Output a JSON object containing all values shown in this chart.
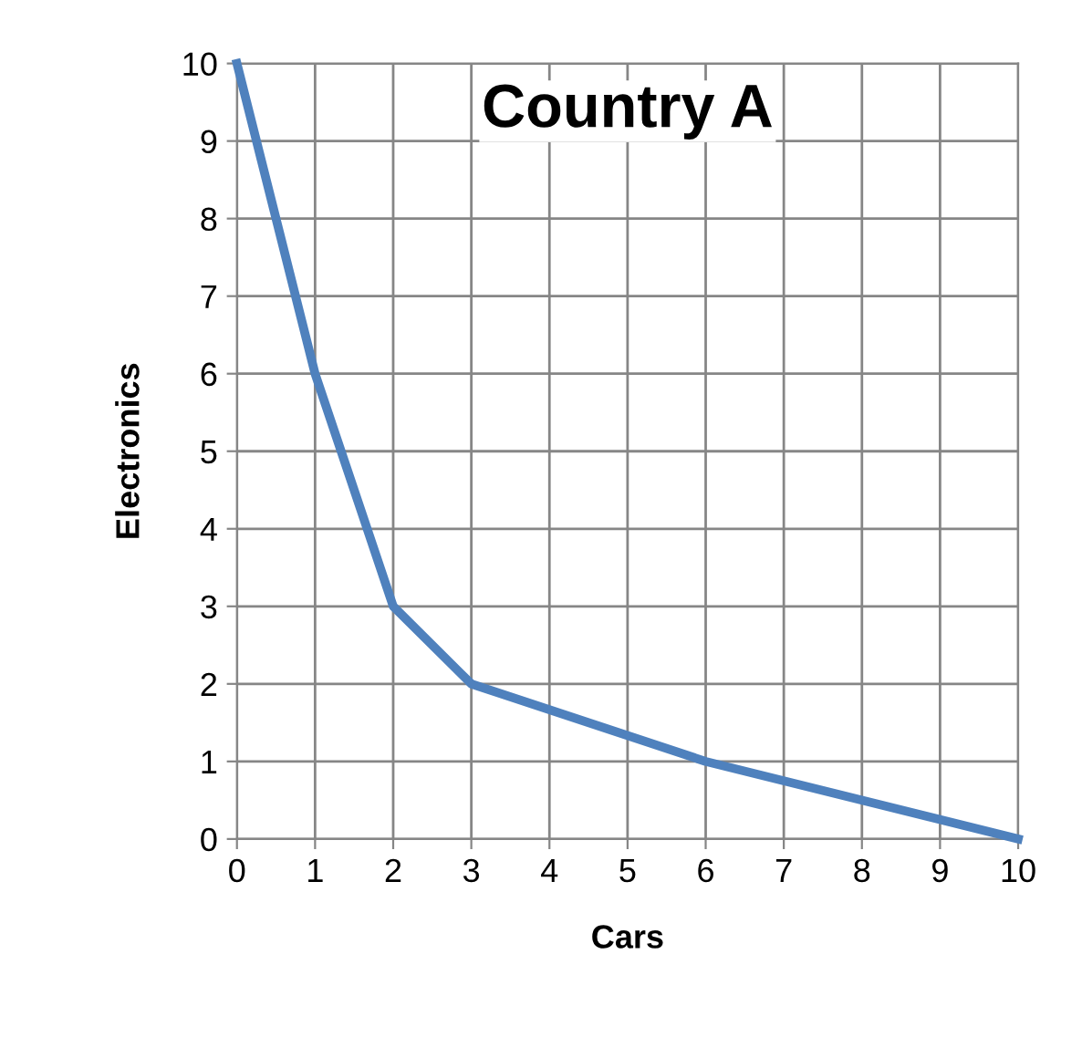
{
  "chart_data": {
    "type": "line",
    "title": "Country A",
    "xlabel": "Cars",
    "ylabel": "Electronics",
    "x": [
      0,
      1,
      2,
      3,
      6,
      10
    ],
    "series": [
      {
        "color": "#4f81bd",
        "values": [
          10,
          6,
          3,
          2,
          1,
          0
        ]
      }
    ],
    "xlim": [
      0,
      10
    ],
    "xticks": [
      0,
      1,
      2,
      3,
      4,
      5,
      6,
      7,
      8,
      9,
      10
    ],
    "ylim": [
      0,
      10
    ],
    "yticks": [
      0,
      1,
      2,
      3,
      4,
      5,
      6,
      7,
      8,
      9,
      10
    ],
    "grid": true,
    "legend": false,
    "marker": "none",
    "line_style": "solid"
  }
}
